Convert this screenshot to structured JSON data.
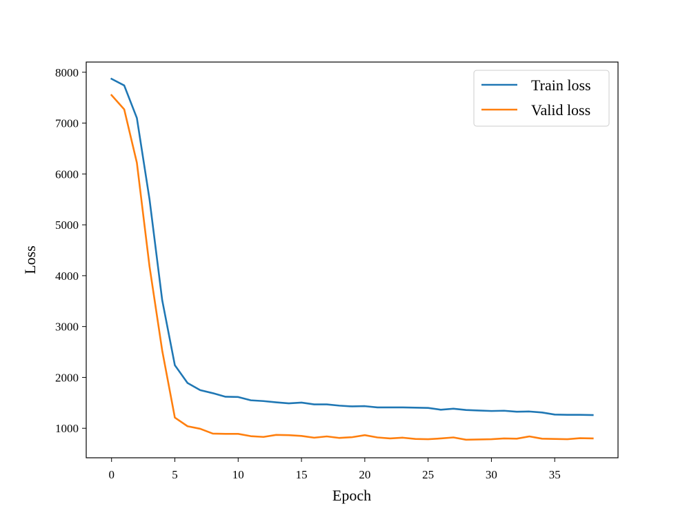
{
  "chart_data": {
    "type": "line",
    "title": "",
    "xlabel": "Epoch",
    "ylabel": "Loss",
    "xlim": [
      -2,
      40
    ],
    "ylim": [
      420,
      8200
    ],
    "xticks": [
      0,
      5,
      10,
      15,
      20,
      25,
      30,
      35
    ],
    "yticks": [
      1000,
      2000,
      3000,
      4000,
      5000,
      6000,
      7000,
      8000
    ],
    "grid": false,
    "legend_position": "top-right",
    "series": [
      {
        "name": "Train loss",
        "color": "#1f77b4",
        "x": [
          0,
          1,
          2,
          3,
          4,
          5,
          6,
          7,
          8,
          9,
          10,
          11,
          12,
          13,
          14,
          15,
          16,
          17,
          18,
          19,
          20,
          21,
          22,
          23,
          24,
          25,
          26,
          27,
          28,
          29,
          30,
          31,
          32,
          33,
          34,
          35,
          36,
          37,
          38
        ],
        "values": [
          7870,
          7740,
          7100,
          5500,
          3520,
          2240,
          1890,
          1750,
          1690,
          1620,
          1615,
          1550,
          1535,
          1510,
          1490,
          1505,
          1470,
          1470,
          1445,
          1430,
          1435,
          1410,
          1410,
          1410,
          1405,
          1400,
          1365,
          1385,
          1360,
          1350,
          1340,
          1345,
          1325,
          1330,
          1310,
          1270,
          1265,
          1265,
          1260
        ]
      },
      {
        "name": "Valid loss",
        "color": "#ff7f0e",
        "x": [
          0,
          1,
          2,
          3,
          4,
          5,
          6,
          7,
          8,
          9,
          10,
          11,
          12,
          13,
          14,
          15,
          16,
          17,
          18,
          19,
          20,
          21,
          22,
          23,
          24,
          25,
          26,
          27,
          28,
          29,
          30,
          31,
          32,
          33,
          34,
          35,
          36,
          37,
          38
        ],
        "values": [
          7550,
          7270,
          6220,
          4180,
          2530,
          1210,
          1040,
          990,
          895,
          890,
          890,
          845,
          830,
          870,
          865,
          850,
          815,
          840,
          810,
          825,
          865,
          820,
          800,
          815,
          790,
          785,
          800,
          820,
          775,
          780,
          785,
          800,
          795,
          840,
          795,
          790,
          785,
          805,
          800
        ]
      }
    ]
  }
}
